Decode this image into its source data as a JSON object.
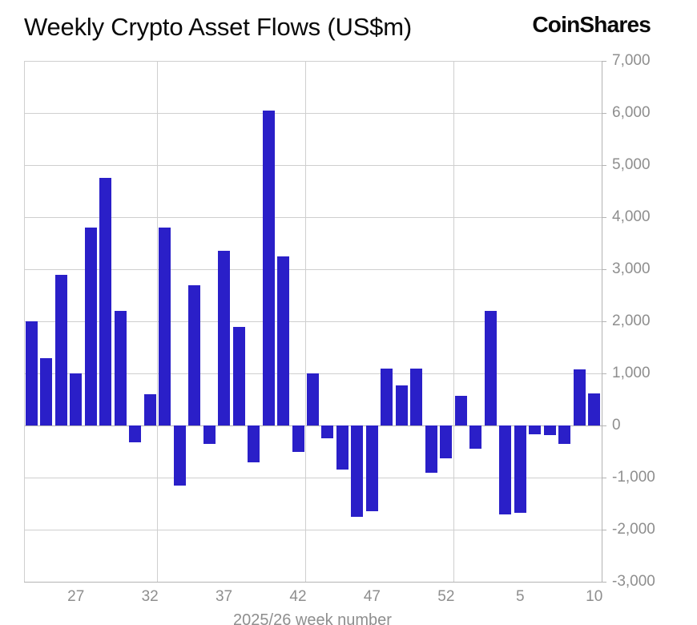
{
  "header": {
    "title": "Weekly Crypto Asset Flows (US$m)",
    "logo": "CoinShares"
  },
  "colors": {
    "bar": "#2A1FC8",
    "grid": "#cfcfcf",
    "axis": "#b3b3b3",
    "tick_label": "#8e8e8e",
    "title_text": "#0a0a0a"
  },
  "chart_data": {
    "type": "bar",
    "title": "Weekly Crypto Asset Flows (US$m)",
    "xlabel": "2025/26 week number",
    "ylabel": "",
    "ylim": [
      -3000,
      7000
    ],
    "grid": "horizontal with sparse vertical lines",
    "legend_position": "none",
    "y_ticks": [
      "7,000",
      "6,000",
      "5,000",
      "4,000",
      "3,000",
      "2,000",
      "1,000",
      "0",
      "-1,000",
      "-2,000",
      "-3,000"
    ],
    "categories": [
      "24",
      "25",
      "26",
      "27",
      "28",
      "29",
      "30",
      "31",
      "32",
      "33",
      "34",
      "35",
      "36",
      "37",
      "38",
      "39",
      "40",
      "41",
      "42",
      "43",
      "44",
      "45",
      "46",
      "47",
      "48",
      "49",
      "50",
      "51",
      "52",
      "1",
      "2",
      "3",
      "4",
      "5",
      "6",
      "7",
      "8",
      "9",
      "10"
    ],
    "values": [
      2000,
      1300,
      2900,
      1000,
      3800,
      4750,
      2200,
      -320,
      600,
      3800,
      -1150,
      2700,
      -350,
      3350,
      1900,
      -700,
      6050,
      3250,
      -500,
      1000,
      -250,
      -850,
      -1750,
      -1650,
      1100,
      770,
      1090,
      -900,
      -630,
      575,
      -450,
      2200,
      -1700,
      -1680,
      -165,
      -185,
      -350,
      1080,
      615
    ],
    "x_ticks": [
      "27",
      "32",
      "37",
      "42",
      "47",
      "52",
      "5",
      "10"
    ],
    "vgrid_after_categories": [
      "32",
      "42",
      "52"
    ]
  }
}
